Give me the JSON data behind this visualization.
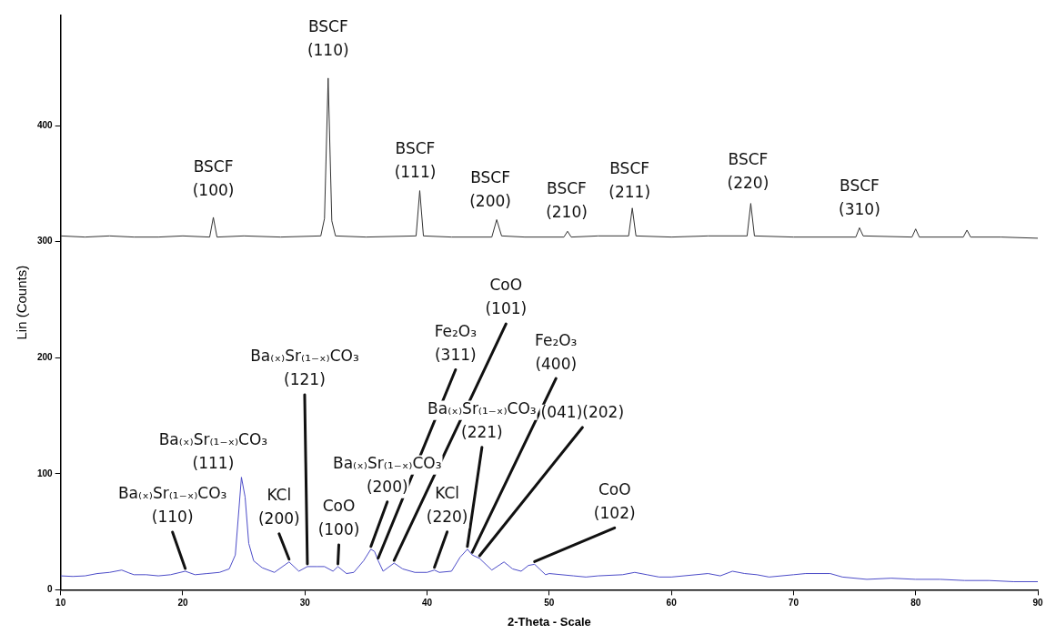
{
  "chart_data": {
    "type": "line",
    "xlabel": "2-Theta - Scale",
    "ylabel": "Lin (Counts)",
    "xlim": [
      10,
      90
    ],
    "xticks": [
      10,
      20,
      30,
      40,
      50,
      60,
      70,
      80,
      90
    ],
    "ylim": [
      0,
      495
    ],
    "yticks": [
      0,
      100,
      200,
      300,
      400
    ],
    "marker": "none",
    "series": [
      {
        "color": "#333333",
        "x": [
          10,
          12,
          14,
          16,
          18,
          20,
          22.2,
          22.5,
          22.8,
          25,
          28,
          31.3,
          31.6,
          31.9,
          32.2,
          32.5,
          35,
          39.1,
          39.4,
          39.7,
          42,
          45.3,
          45.7,
          46.1,
          48,
          51.2,
          51.5,
          51.8,
          54,
          56.5,
          56.8,
          57.1,
          60,
          63,
          66.2,
          66.5,
          66.8,
          70,
          75.1,
          75.4,
          75.7,
          79.7,
          80,
          80.3,
          83.9,
          84.2,
          84.5,
          87,
          90
        ],
        "values": [
          305,
          304,
          305,
          304,
          304,
          305,
          304,
          321,
          304,
          305,
          304,
          305,
          320,
          441,
          318,
          305,
          304,
          305,
          344,
          305,
          304,
          304,
          319,
          305,
          304,
          304,
          309,
          304,
          305,
          305,
          329,
          305,
          304,
          305,
          305,
          333,
          305,
          304,
          304,
          312,
          305,
          304,
          311,
          304,
          304,
          310,
          304,
          304,
          303
        ]
      },
      {
        "color": "#4c4cc8",
        "x": [
          10,
          11,
          12,
          13,
          14,
          15,
          15.6,
          16,
          17,
          18,
          19,
          20.2,
          21,
          22,
          23,
          23.8,
          24.3,
          24.6,
          24.8,
          25.1,
          25.4,
          25.8,
          26.5,
          27.5,
          28.7,
          29.5,
          30.2,
          31,
          31.6,
          32.3,
          32.7,
          33.4,
          34,
          34.8,
          35.4,
          35.7,
          36,
          36.4,
          37.3,
          38,
          39,
          40,
          40.6,
          41,
          42,
          42.7,
          43.3,
          43.7,
          44.3,
          44.8,
          45.3,
          46.3,
          47,
          47.7,
          48.3,
          48.8,
          49.2,
          49.7,
          50,
          52,
          53,
          54,
          56,
          57,
          58,
          59,
          60,
          62,
          63,
          64,
          65,
          66,
          67,
          68,
          70,
          71,
          73,
          74,
          76,
          78,
          80,
          82,
          84,
          86,
          88,
          90
        ],
        "values": [
          12,
          11.5,
          12,
          14,
          15,
          17,
          14.5,
          13,
          13,
          12,
          13,
          16,
          13,
          14,
          15,
          18,
          30,
          70,
          97,
          80,
          40,
          25,
          19,
          15,
          24,
          16,
          20,
          20,
          20,
          16,
          20,
          14,
          15,
          25,
          35,
          33,
          25,
          16,
          23,
          18,
          15,
          15,
          17,
          15,
          16,
          28,
          35,
          30,
          27,
          22,
          17,
          24,
          18,
          16,
          21,
          22,
          18,
          13,
          14,
          12,
          11,
          12,
          13,
          15,
          13,
          11,
          11,
          13,
          14,
          12,
          16,
          14,
          13,
          11,
          13,
          14,
          14,
          11,
          9,
          10,
          9,
          9,
          8,
          8,
          7,
          7
        ]
      }
    ],
    "annotations": [
      {
        "text": "BSCF\n(100)",
        "x": 22.5,
        "y": 321
      },
      {
        "text": "BSCF\n(110)",
        "x": 31.9,
        "y": 441
      },
      {
        "text": "BSCF\n(111)",
        "x": 39.4,
        "y": 344
      },
      {
        "text": "BSCF\n(200)",
        "x": 45.7,
        "y": 319
      },
      {
        "text": "BSCF\n(210)",
        "x": 51.5,
        "y": 309
      },
      {
        "text": "BSCF\n(211)",
        "x": 56.8,
        "y": 329
      },
      {
        "text": "BSCF\n(220)",
        "x": 66.5,
        "y": 333
      },
      {
        "text": "BSCF\n(310)",
        "x": 75.4,
        "y": 312
      },
      {
        "text": "Ba₍ₓ₎Sr₍₁₋ₓ₎CO₃\n(110)",
        "x": 20.2,
        "y": 16
      },
      {
        "text": "Ba₍ₓ₎Sr₍₁₋ₓ₎CO₃\n(111)",
        "x": 24.8,
        "y": 97
      },
      {
        "text": "KCl\n(200)",
        "x": 28.7,
        "y": 24
      },
      {
        "text": "Ba₍ₓ₎Sr₍₁₋ₓ₎CO₃\n(121)",
        "x": 30.2,
        "y": 20
      },
      {
        "text": "CoO\n(100)",
        "x": 32.7,
        "y": 20
      },
      {
        "text": "Ba₍ₓ₎Sr₍₁₋ₓ₎CO₃\n(200)",
        "x": 35.4,
        "y": 35
      },
      {
        "text": "KCl\n(220)",
        "x": 40.6,
        "y": 17
      },
      {
        "text": "Fe₂O₃\n(311)",
        "x": 36,
        "y": 25
      },
      {
        "text": "CoO\n(101)",
        "x": 37.3,
        "y": 23
      },
      {
        "text": "Fe₂O₃\n(400)",
        "x": 43.7,
        "y": 30
      },
      {
        "text": "Ba₍ₓ₎Sr₍₁₋ₓ₎CO₃\n(221)",
        "x": 43.3,
        "y": 35
      },
      {
        "text": "(041)(202)",
        "x": 44.3,
        "y": 27
      },
      {
        "text": "CoO\n(102)",
        "x": 48.8,
        "y": 22
      }
    ]
  }
}
